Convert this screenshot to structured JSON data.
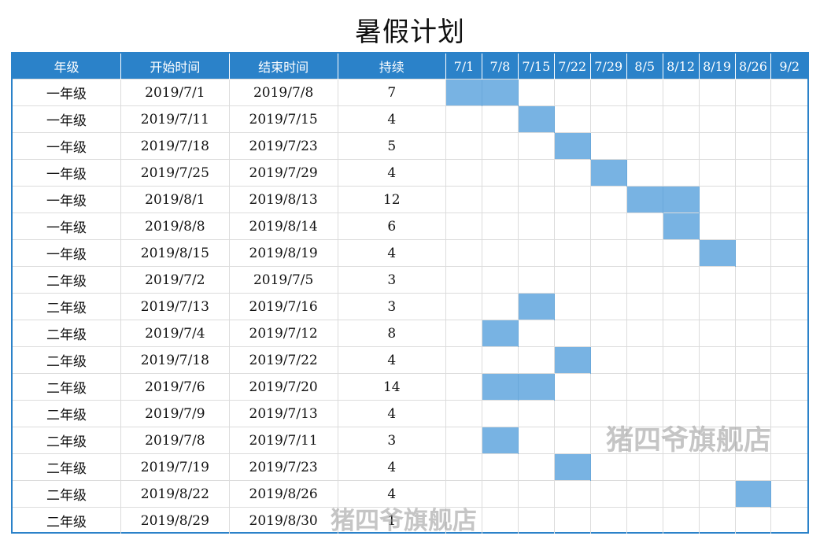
{
  "title": "暑假计划",
  "headers": {
    "grade": "年级",
    "start": "开始时间",
    "end": "结束时间",
    "duration": "持续"
  },
  "weeks": [
    "7/1",
    "7/8",
    "7/15",
    "7/22",
    "7/29",
    "8/5",
    "8/12",
    "8/19",
    "8/26",
    "9/2"
  ],
  "colors": {
    "header": "#2b82c9",
    "bar": "#78b3e3",
    "grid": "#dcdcdc"
  },
  "rows": [
    {
      "grade": "一年级",
      "start": "2019/7/1",
      "end": "2019/7/8",
      "duration": "7",
      "bars": [
        0,
        1
      ]
    },
    {
      "grade": "一年级",
      "start": "2019/7/11",
      "end": "2019/7/15",
      "duration": "4",
      "bars": [
        2
      ]
    },
    {
      "grade": "一年级",
      "start": "2019/7/18",
      "end": "2019/7/23",
      "duration": "5",
      "bars": [
        3
      ]
    },
    {
      "grade": "一年级",
      "start": "2019/7/25",
      "end": "2019/7/29",
      "duration": "4",
      "bars": [
        4
      ]
    },
    {
      "grade": "一年级",
      "start": "2019/8/1",
      "end": "2019/8/13",
      "duration": "12",
      "bars": [
        5,
        6
      ]
    },
    {
      "grade": "一年级",
      "start": "2019/8/8",
      "end": "2019/8/14",
      "duration": "6",
      "bars": [
        6
      ]
    },
    {
      "grade": "一年级",
      "start": "2019/8/15",
      "end": "2019/8/19",
      "duration": "4",
      "bars": [
        7
      ]
    },
    {
      "grade": "二年级",
      "start": "2019/7/2",
      "end": "2019/7/5",
      "duration": "3",
      "bars": []
    },
    {
      "grade": "二年级",
      "start": "2019/7/13",
      "end": "2019/7/16",
      "duration": "3",
      "bars": [
        2
      ]
    },
    {
      "grade": "二年级",
      "start": "2019/7/4",
      "end": "2019/7/12",
      "duration": "8",
      "bars": [
        1
      ]
    },
    {
      "grade": "二年级",
      "start": "2019/7/18",
      "end": "2019/7/22",
      "duration": "4",
      "bars": [
        3
      ]
    },
    {
      "grade": "二年级",
      "start": "2019/7/6",
      "end": "2019/7/20",
      "duration": "14",
      "bars": [
        1,
        2
      ]
    },
    {
      "grade": "二年级",
      "start": "2019/7/9",
      "end": "2019/7/13",
      "duration": "4",
      "bars": []
    },
    {
      "grade": "二年级",
      "start": "2019/7/8",
      "end": "2019/7/11",
      "duration": "3",
      "bars": [
        1
      ]
    },
    {
      "grade": "二年级",
      "start": "2019/7/19",
      "end": "2019/7/23",
      "duration": "4",
      "bars": [
        3
      ]
    },
    {
      "grade": "二年级",
      "start": "2019/8/22",
      "end": "2019/8/26",
      "duration": "4",
      "bars": [
        8
      ]
    },
    {
      "grade": "二年级",
      "start": "2019/8/29",
      "end": "2019/8/30",
      "duration": "1",
      "bars": []
    }
  ],
  "watermark": "猪四爷旗舰店"
}
